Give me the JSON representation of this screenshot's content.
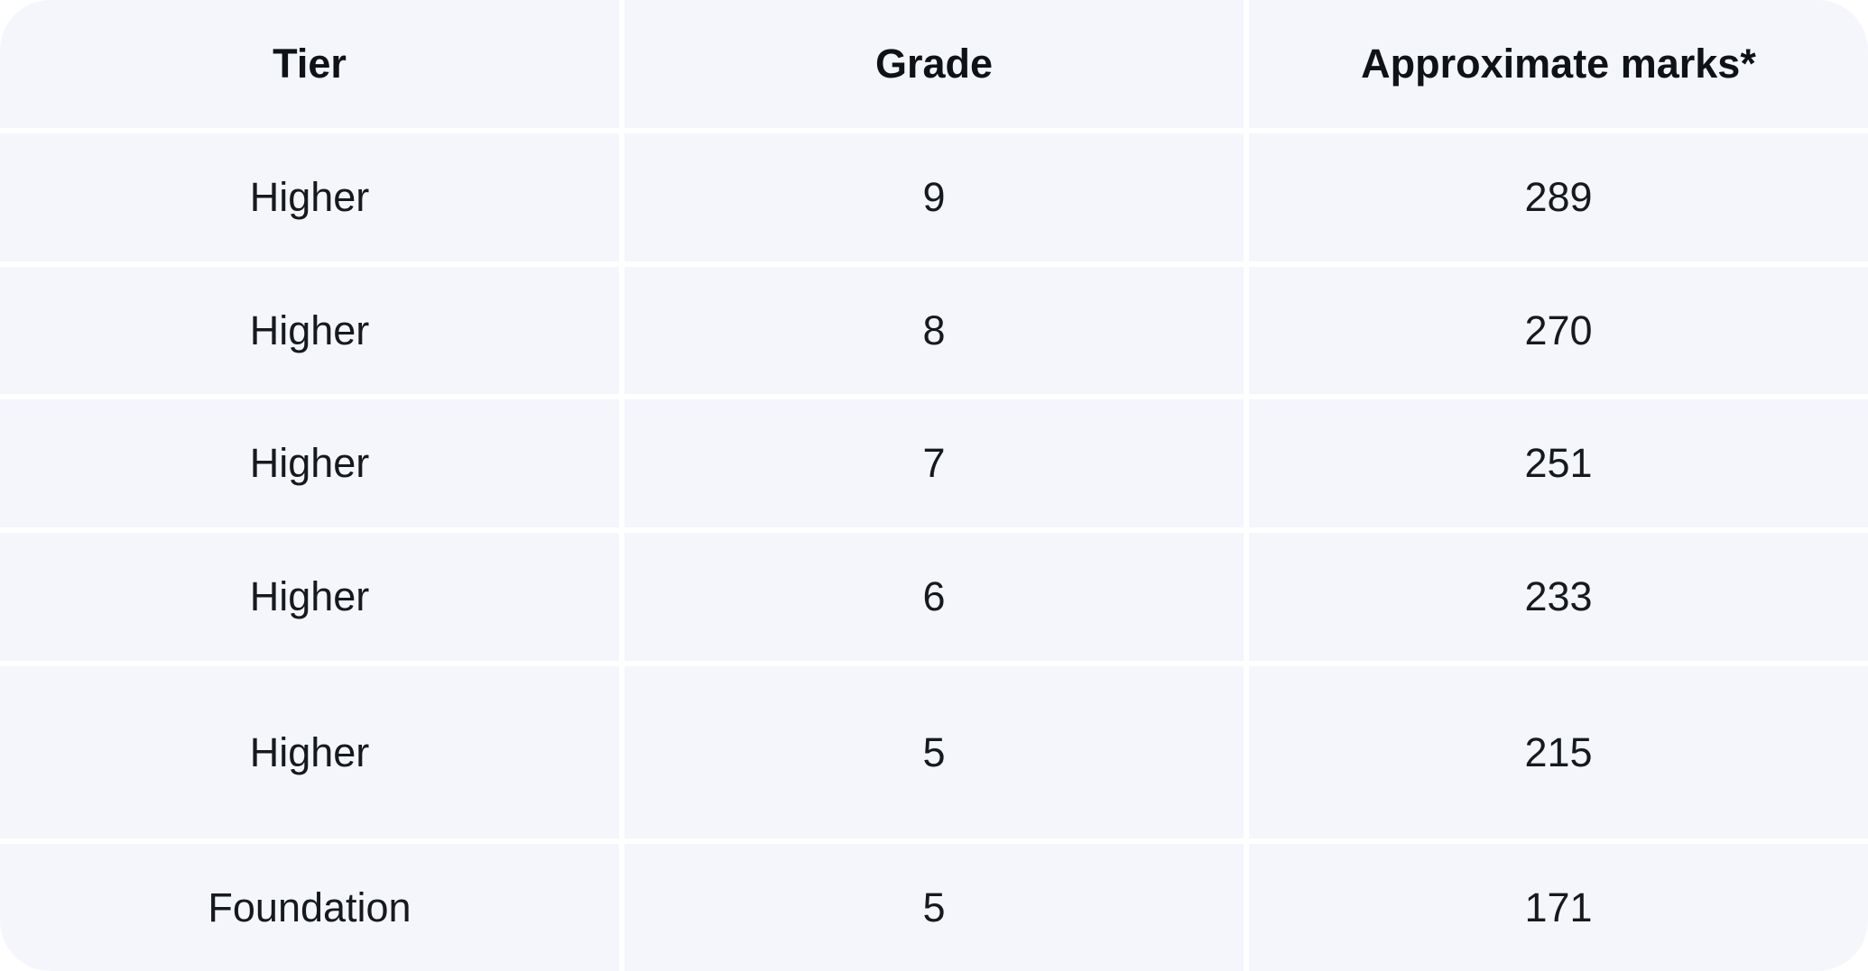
{
  "chart_data": {
    "type": "table",
    "columns": [
      "Tier",
      "Grade",
      "Approximate marks*"
    ],
    "rows": [
      [
        "Higher",
        "9",
        "289"
      ],
      [
        "Higher",
        "8",
        "270"
      ],
      [
        "Higher",
        "7",
        "251"
      ],
      [
        "Higher",
        "6",
        "233"
      ],
      [
        "Higher",
        "5",
        "215"
      ],
      [
        "Foundation",
        "5",
        "171"
      ]
    ]
  },
  "colors": {
    "cell_background": "#f4f6fc",
    "separator": "#ffffff",
    "header_text": "#0f1318",
    "body_text": "#16191e"
  }
}
